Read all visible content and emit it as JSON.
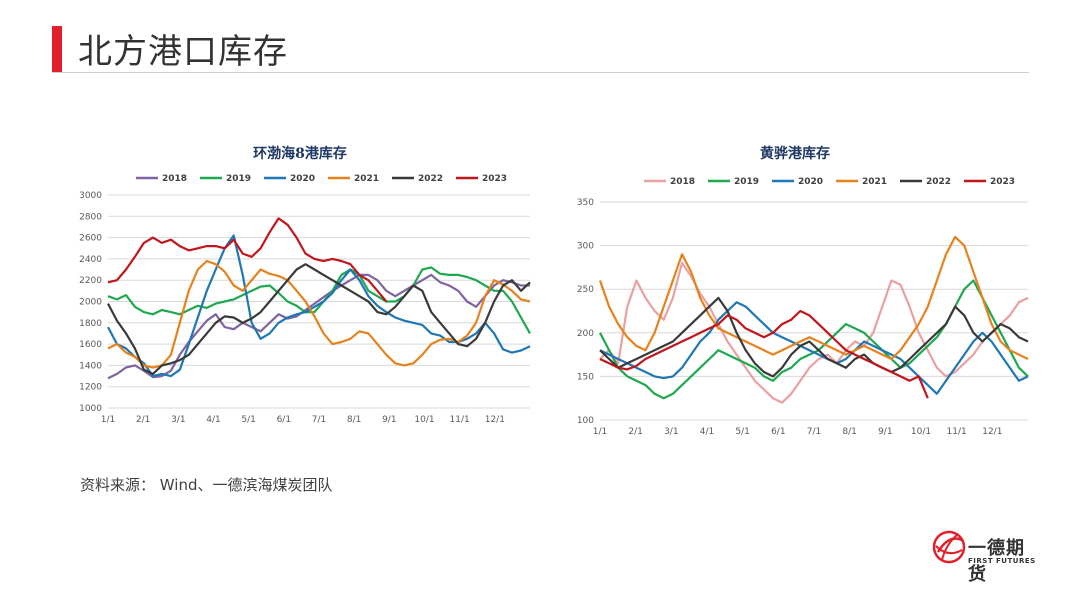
{
  "page": {
    "title": "北方港口库存",
    "source": "资料来源： Wind、一德滨海煤炭团队",
    "logo_cn": "一德期货",
    "logo_en": "FIRST FUTURES",
    "accent_color": "#e0202a"
  },
  "chart_data": [
    {
      "type": "line",
      "title": "环渤海8港库存",
      "xlabel": "",
      "ylabel": "",
      "ylim": [
        1000,
        3000
      ],
      "yticks": [
        1000,
        1200,
        1400,
        1600,
        1800,
        2000,
        2200,
        2400,
        2600,
        2800,
        3000
      ],
      "xticks": [
        "1/1",
        "2/1",
        "3/1",
        "4/1",
        "5/1",
        "6/1",
        "7/1",
        "8/1",
        "9/1",
        "10/1",
        "11/1",
        "12/1"
      ],
      "grid": "horizontal",
      "legend": "top",
      "series": [
        {
          "name": "2018",
          "color": "#8064a2",
          "values": [
            1280,
            1320,
            1380,
            1400,
            1350,
            1290,
            1300,
            1350,
            1500,
            1620,
            1720,
            1820,
            1880,
            1760,
            1740,
            1800,
            1760,
            1720,
            1800,
            1880,
            1840,
            1860,
            1920,
            1980,
            2040,
            2100,
            2150,
            2200,
            2250,
            2250,
            2200,
            2100,
            2050,
            2100,
            2150,
            2200,
            2250,
            2180,
            2150,
            2100,
            2000,
            1950,
            2050,
            2150,
            2200,
            2180,
            2150,
            2150
          ]
        },
        {
          "name": "2019",
          "color": "#1fa84f",
          "values": [
            2050,
            2020,
            2060,
            1950,
            1900,
            1880,
            1920,
            1900,
            1880,
            1920,
            1960,
            1940,
            1980,
            2000,
            2020,
            2060,
            2100,
            2140,
            2150,
            2080,
            2000,
            1960,
            1900,
            1900,
            2000,
            2100,
            2250,
            2300,
            2250,
            2100,
            2050,
            2000,
            2000,
            2050,
            2150,
            2300,
            2320,
            2260,
            2250,
            2250,
            2230,
            2200,
            2150,
            2100,
            2100,
            2000,
            1850,
            1700
          ]
        },
        {
          "name": "2020",
          "color": "#1f77b4",
          "values": [
            1760,
            1600,
            1560,
            1480,
            1420,
            1300,
            1320,
            1300,
            1360,
            1600,
            1850,
            2100,
            2300,
            2500,
            2620,
            2250,
            1800,
            1650,
            1700,
            1800,
            1850,
            1880,
            1900,
            1950,
            2000,
            2080,
            2200,
            2300,
            2200,
            2050,
            1960,
            1900,
            1850,
            1820,
            1800,
            1780,
            1700,
            1680,
            1620,
            1620,
            1650,
            1700,
            1800,
            1700,
            1550,
            1520,
            1540,
            1580
          ]
        },
        {
          "name": "2021",
          "color": "#e6821e",
          "values": [
            1560,
            1600,
            1520,
            1480,
            1400,
            1380,
            1400,
            1500,
            1800,
            2100,
            2300,
            2380,
            2350,
            2280,
            2150,
            2100,
            2200,
            2300,
            2260,
            2240,
            2200,
            2100,
            2000,
            1860,
            1700,
            1600,
            1620,
            1650,
            1720,
            1700,
            1600,
            1500,
            1420,
            1400,
            1420,
            1500,
            1600,
            1640,
            1650,
            1620,
            1680,
            1800,
            2050,
            2200,
            2160,
            2100,
            2020,
            2000
          ]
        },
        {
          "name": "2022",
          "color": "#3a3a3a",
          "values": [
            1980,
            1820,
            1700,
            1560,
            1360,
            1320,
            1400,
            1420,
            1450,
            1500,
            1600,
            1700,
            1800,
            1860,
            1850,
            1800,
            1840,
            1900,
            2000,
            2100,
            2200,
            2300,
            2350,
            2300,
            2250,
            2200,
            2150,
            2100,
            2050,
            2000,
            1900,
            1880,
            1950,
            2050,
            2150,
            2100,
            1900,
            1800,
            1700,
            1600,
            1580,
            1650,
            1800,
            2000,
            2150,
            2200,
            2100,
            2180
          ]
        },
        {
          "name": "2023",
          "color": "#c0161e",
          "values": [
            2180,
            2200,
            2300,
            2420,
            2550,
            2600,
            2550,
            2580,
            2520,
            2480,
            2500,
            2520,
            2520,
            2500,
            2580,
            2450,
            2420,
            2500,
            2650,
            2780,
            2720,
            2600,
            2450,
            2400,
            2380,
            2400,
            2380,
            2350,
            2250,
            2200,
            2100,
            2000
          ]
        }
      ]
    },
    {
      "type": "line",
      "title": "黄骅港库存",
      "xlabel": "",
      "ylabel": "",
      "ylim": [
        100,
        350
      ],
      "yticks": [
        100,
        150,
        200,
        250,
        300,
        350
      ],
      "xticks": [
        "1/1",
        "2/1",
        "3/1",
        "4/1",
        "5/1",
        "6/1",
        "7/1",
        "8/1",
        "9/1",
        "10/1",
        "11/1",
        "12/1"
      ],
      "grid": "horizontal",
      "legend": "top",
      "series": [
        {
          "name": "2018",
          "color": "#e8a0a0",
          "values": [
            170,
            180,
            165,
            230,
            260,
            240,
            225,
            215,
            240,
            280,
            265,
            245,
            230,
            210,
            190,
            175,
            160,
            145,
            135,
            125,
            120,
            130,
            145,
            160,
            170,
            175,
            165,
            180,
            190,
            185,
            200,
            230,
            260,
            255,
            230,
            200,
            180,
            160,
            150,
            155,
            165,
            175,
            190,
            200,
            210,
            220,
            235,
            240
          ]
        },
        {
          "name": "2019",
          "color": "#1fa84f",
          "values": [
            200,
            180,
            160,
            150,
            145,
            140,
            130,
            125,
            130,
            140,
            150,
            160,
            170,
            180,
            175,
            170,
            165,
            160,
            150,
            145,
            155,
            160,
            170,
            175,
            180,
            190,
            200,
            210,
            205,
            200,
            190,
            180,
            170,
            160,
            165,
            175,
            185,
            195,
            210,
            230,
            250,
            260,
            240,
            220,
            200,
            180,
            160,
            150
          ]
        },
        {
          "name": "2020",
          "color": "#1f77b4",
          "values": [
            180,
            175,
            170,
            165,
            160,
            155,
            150,
            148,
            150,
            160,
            175,
            190,
            200,
            215,
            225,
            235,
            230,
            220,
            210,
            200,
            195,
            190,
            185,
            180,
            175,
            170,
            165,
            170,
            180,
            190,
            185,
            180,
            175,
            170,
            160,
            150,
            140,
            130,
            145,
            160,
            175,
            190,
            200,
            190,
            175,
            160,
            145,
            150
          ]
        },
        {
          "name": "2021",
          "color": "#e6821e",
          "values": [
            260,
            230,
            210,
            195,
            185,
            180,
            200,
            230,
            260,
            290,
            270,
            240,
            220,
            205,
            200,
            195,
            190,
            185,
            180,
            175,
            180,
            185,
            190,
            195,
            190,
            185,
            180,
            175,
            180,
            185,
            180,
            175,
            170,
            180,
            195,
            210,
            230,
            260,
            290,
            310,
            300,
            270,
            240,
            210,
            190,
            180,
            175,
            170
          ]
        },
        {
          "name": "2022",
          "color": "#3a3a3a",
          "values": [
            180,
            170,
            160,
            165,
            170,
            175,
            180,
            185,
            190,
            200,
            210,
            220,
            230,
            240,
            225,
            200,
            180,
            165,
            155,
            150,
            160,
            175,
            185,
            190,
            180,
            170,
            165,
            160,
            170,
            175,
            165,
            160,
            155,
            160,
            170,
            180,
            190,
            200,
            210,
            230,
            220,
            200,
            190,
            200,
            210,
            205,
            195,
            190
          ]
        },
        {
          "name": "2023",
          "color": "#c0161e",
          "values": [
            170,
            165,
            160,
            158,
            162,
            170,
            175,
            180,
            185,
            190,
            195,
            200,
            205,
            210,
            220,
            215,
            205,
            200,
            195,
            200,
            210,
            215,
            225,
            220,
            210,
            200,
            190,
            180,
            175,
            170,
            165,
            160,
            155,
            150,
            145,
            150,
            125
          ]
        }
      ]
    }
  ]
}
